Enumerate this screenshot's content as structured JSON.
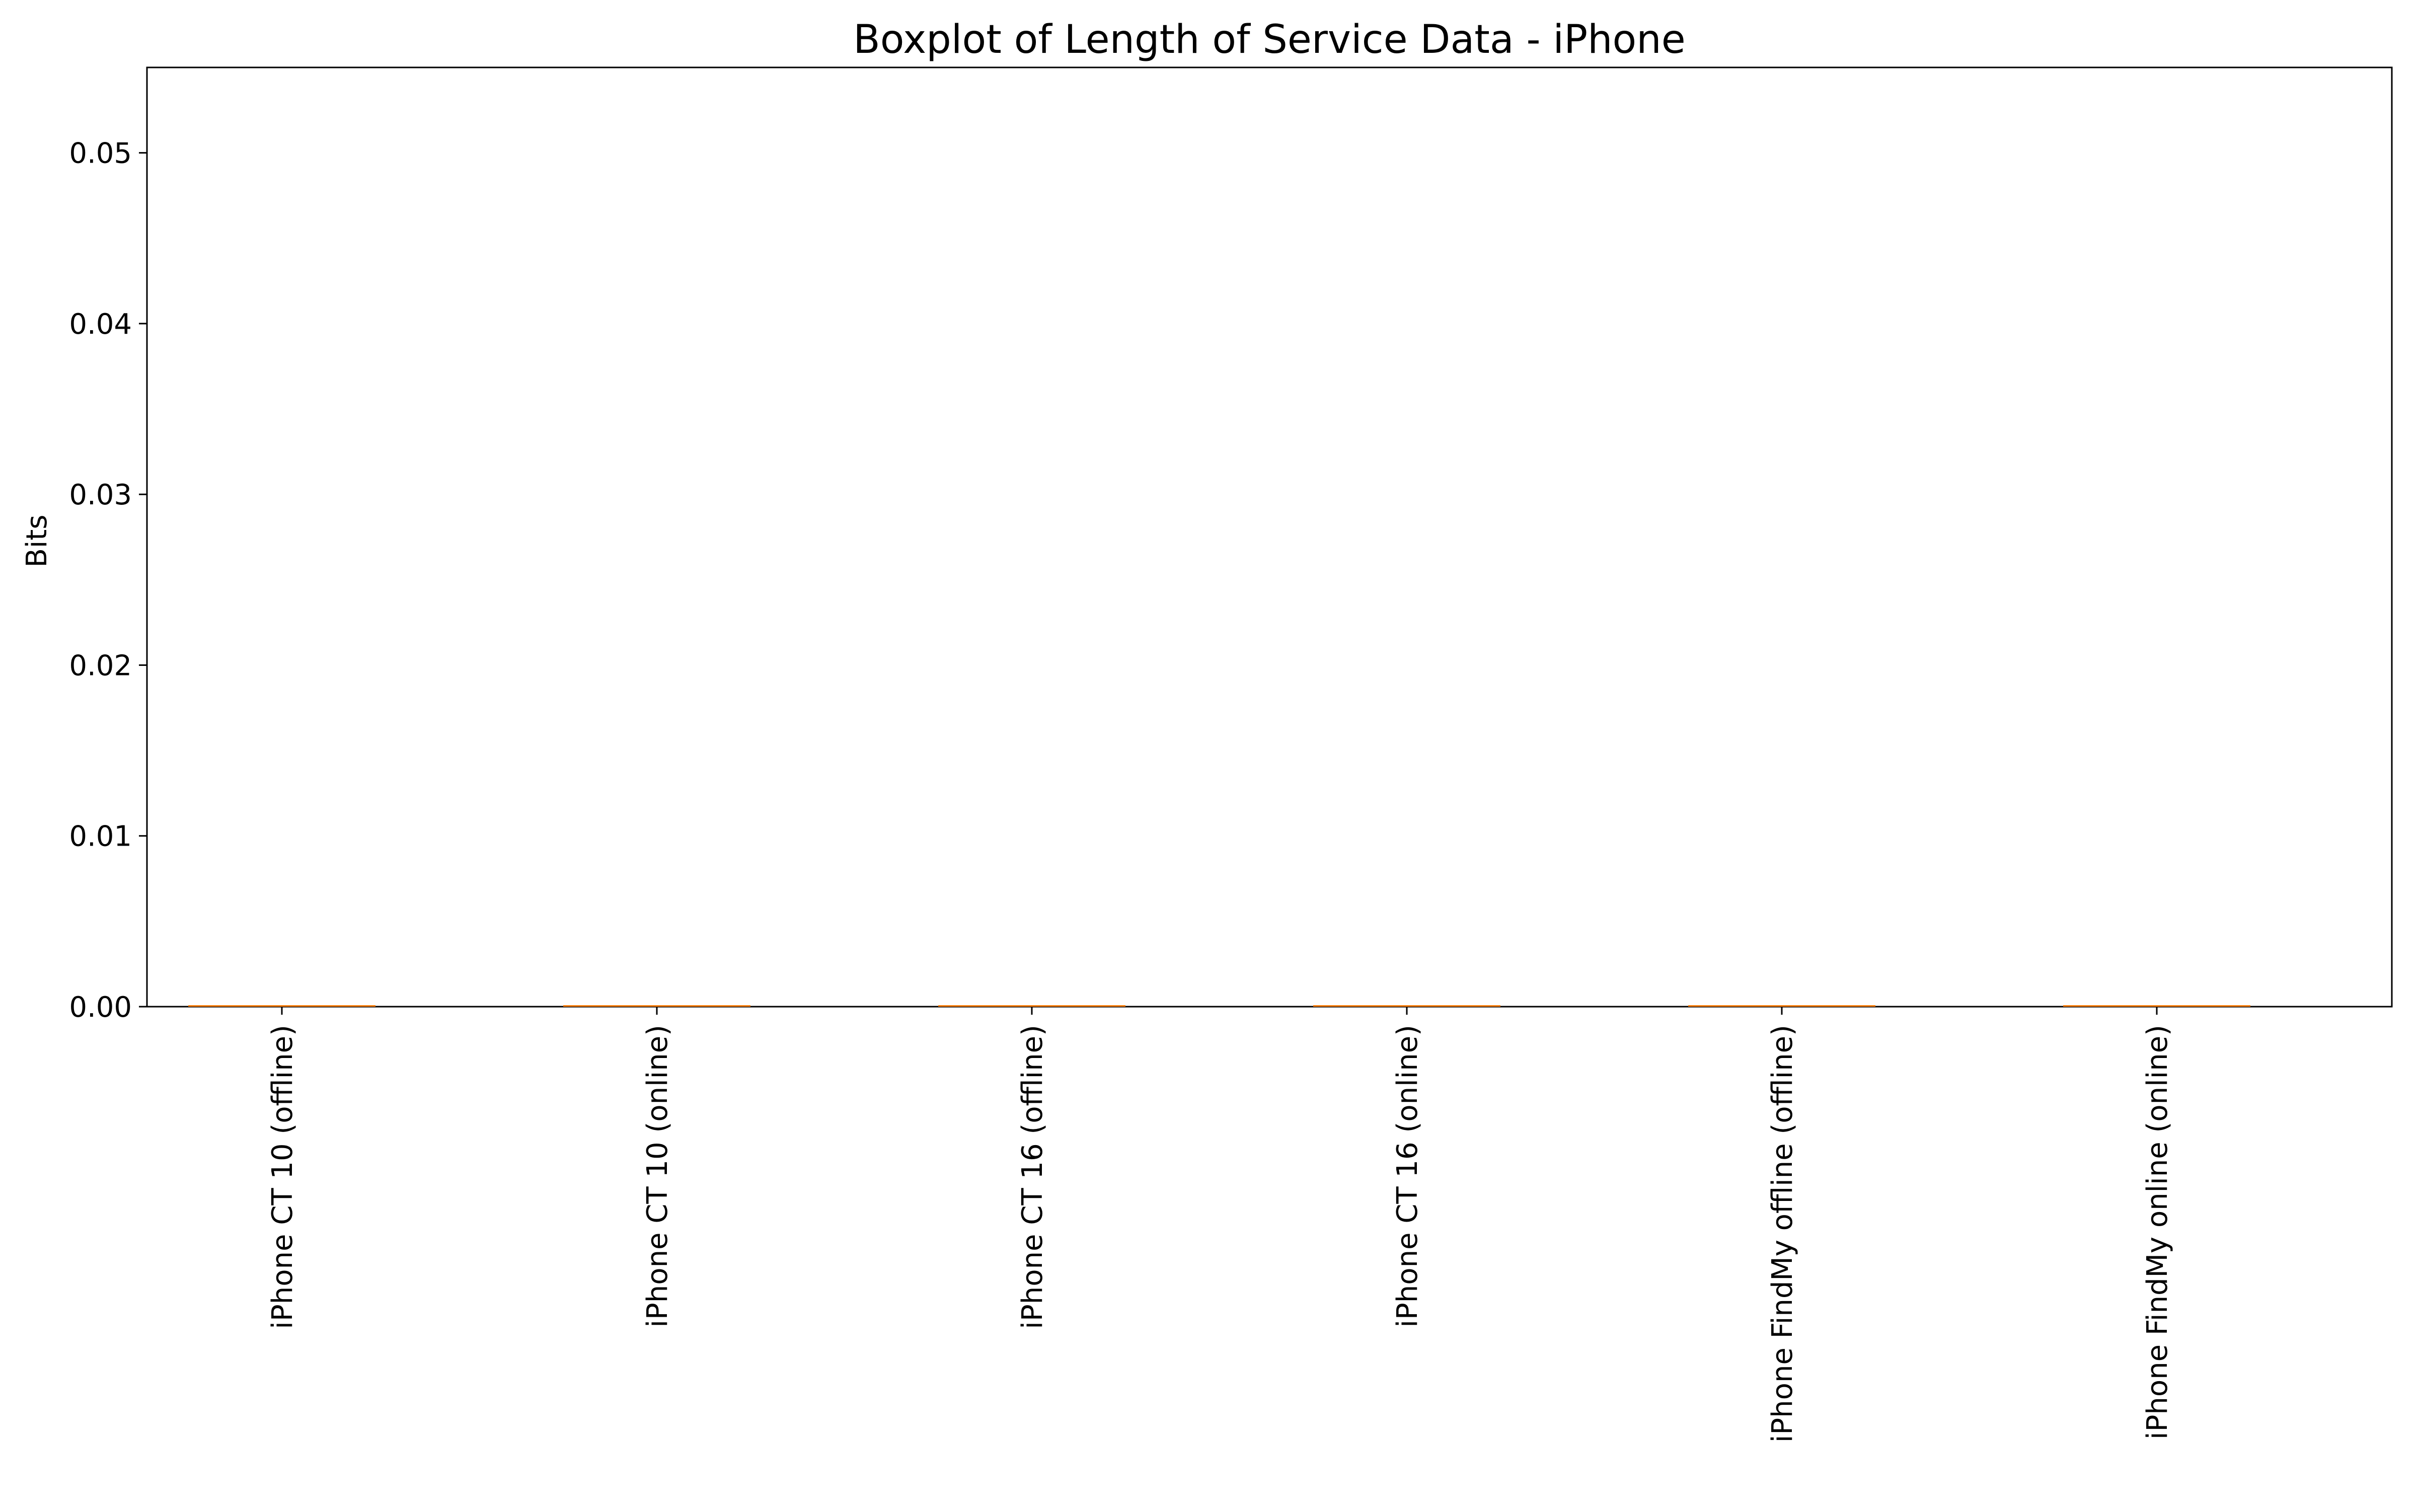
{
  "chart_data": {
    "type": "boxplot",
    "title": "Boxplot of Length of Service Data - iPhone",
    "xlabel": "",
    "ylabel": "Bits",
    "ylim": [
      0,
      0.055
    ],
    "yticks": [
      "0.00",
      "0.01",
      "0.02",
      "0.03",
      "0.04",
      "0.05"
    ],
    "ytick_values": [
      0,
      0.01,
      0.02,
      0.03,
      0.04,
      0.05
    ],
    "grid": false,
    "legend": "none",
    "categories": [
      "iPhone CT 10 (offline)",
      "iPhone CT 10 (online)",
      "iPhone CT 16 (offline)",
      "iPhone CT 16 (online)",
      "iPhone FindMy offline (offline)",
      "iPhone FindMy online (online)"
    ],
    "series": [
      {
        "values": [
          {
            "min": 0,
            "q1": 0,
            "median": 0,
            "q3": 0,
            "max": 0
          },
          {
            "min": 0,
            "q1": 0,
            "median": 0,
            "q3": 0,
            "max": 0
          },
          {
            "min": 0,
            "q1": 0,
            "median": 0,
            "q3": 0,
            "max": 0
          },
          {
            "min": 0,
            "q1": 0,
            "median": 0,
            "q3": 0,
            "max": 0
          },
          {
            "min": 0,
            "q1": 0,
            "median": 0,
            "q3": 0,
            "max": 0
          },
          {
            "min": 0,
            "q1": 0,
            "median": 0,
            "q3": 0,
            "max": 0
          }
        ]
      }
    ],
    "colors": {
      "axes": "#000000",
      "median": "#ff7f0e",
      "box": "#000000"
    }
  }
}
